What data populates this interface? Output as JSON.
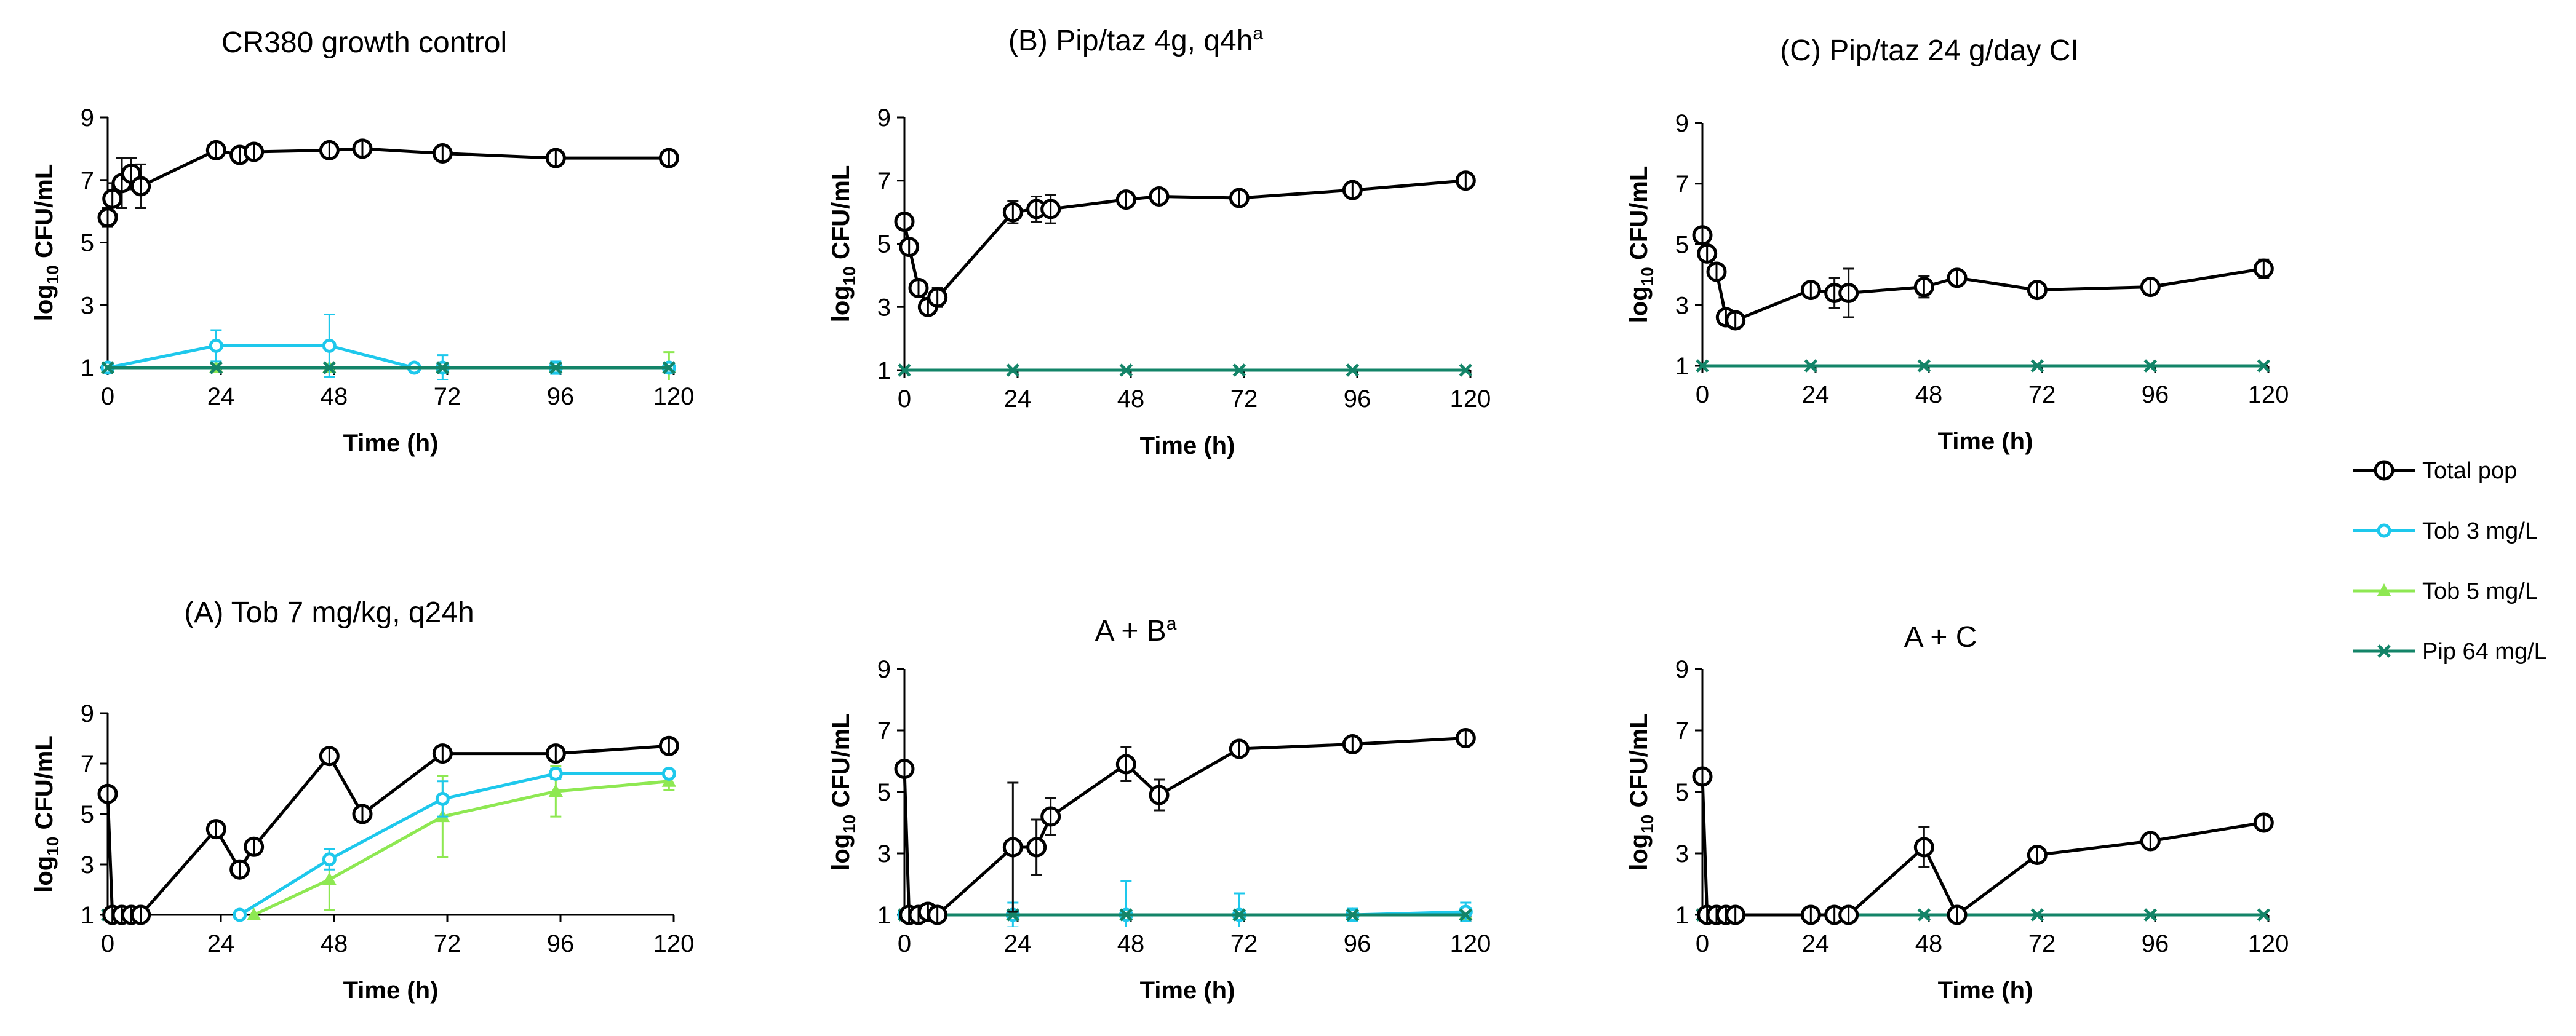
{
  "colors": {
    "total": "#000000",
    "tob3": "#1ec8ec",
    "tob5": "#8ee852",
    "pip64": "#138468",
    "errbar": "#111111"
  },
  "legend": {
    "items": [
      {
        "label": "Total pop",
        "color": "#000000",
        "marker": "circle"
      },
      {
        "label": "Tob 3 mg/L",
        "color": "#1ec8ec",
        "marker": "circle"
      },
      {
        "label": "Tob 5 mg/L",
        "color": "#8ee852",
        "marker": "triangle"
      },
      {
        "label": "Pip 64 mg/L",
        "color": "#138468",
        "marker": "x"
      }
    ]
  },
  "chart_data": [
    {
      "type": "line",
      "title": "CR380 growth control",
      "title_sup": "",
      "xlabel": "Time (h)",
      "ylabel": "log10 CFU/mL",
      "xticks": [
        "0",
        "24",
        "48",
        "72",
        "96",
        "120"
      ],
      "yticks": [
        "1",
        "3",
        "5",
        "7",
        "9"
      ],
      "xlim": [
        0,
        120
      ],
      "ylim": [
        1,
        9
      ],
      "series": [
        {
          "name": "Total pop",
          "x": [
            0,
            1,
            3,
            5,
            7,
            23,
            28,
            31,
            47,
            54,
            71,
            95,
            119
          ],
          "y": [
            5.8,
            6.4,
            6.9,
            7.2,
            6.8,
            7.95,
            7.8,
            7.9,
            7.95,
            8.0,
            7.85,
            7.7,
            7.7
          ],
          "err": [
            0.3,
            0.5,
            0.8,
            0.5,
            0.7,
            0.1,
            0.1,
            0.1,
            0.1,
            0.1,
            0.1,
            0.1,
            0.1
          ]
        },
        {
          "name": "Tob 3 mg/L",
          "x": [
            0,
            23,
            47,
            65,
            71,
            95,
            119
          ],
          "y": [
            1.0,
            1.7,
            1.7,
            1.0,
            1.0,
            1.0,
            1.0
          ],
          "err": [
            0,
            0.5,
            1.0,
            0,
            0.4,
            0.2,
            0
          ]
        },
        {
          "name": "Tob 5 mg/L",
          "x": [
            0,
            23,
            47,
            71,
            95,
            119
          ],
          "y": [
            1.0,
            1.0,
            1.0,
            1.0,
            1.0,
            1.0
          ],
          "err": [
            0,
            0,
            0,
            0,
            0,
            0.5
          ]
        },
        {
          "name": "Pip 64 mg/L",
          "x": [
            0,
            23,
            47,
            71,
            95,
            119
          ],
          "y": [
            1.0,
            1.0,
            1.0,
            1.0,
            1.0,
            1.0
          ],
          "err": [
            0,
            0,
            0,
            0,
            0,
            0
          ]
        }
      ]
    },
    {
      "type": "line",
      "title": "(B) Pip/taz 4g, q4h",
      "title_sup": "a",
      "xlabel": "Time (h)",
      "ylabel": "log10 CFU/mL",
      "xticks": [
        "0",
        "24",
        "48",
        "72",
        "96",
        "120"
      ],
      "yticks": [
        "1",
        "3",
        "5",
        "7",
        "9"
      ],
      "xlim": [
        0,
        120
      ],
      "ylim": [
        1,
        9
      ],
      "series": [
        {
          "name": "Total pop",
          "x": [
            0,
            1,
            3,
            5,
            7,
            23,
            28,
            31,
            47,
            54,
            71,
            95,
            119
          ],
          "y": [
            5.7,
            4.9,
            3.6,
            3.0,
            3.3,
            6.0,
            6.1,
            6.1,
            6.4,
            6.5,
            6.45,
            6.7,
            7.0
          ],
          "err": [
            0.2,
            0.2,
            0.2,
            0.2,
            0.3,
            0.35,
            0.4,
            0.45,
            0.15,
            0.1,
            0.1,
            0.1,
            0.1
          ]
        },
        {
          "name": "Pip 64 mg/L",
          "x": [
            0,
            23,
            47,
            71,
            95,
            119
          ],
          "y": [
            1.0,
            1.0,
            1.0,
            1.0,
            1.0,
            1.0
          ],
          "err": [
            0,
            0,
            0,
            0,
            0,
            0
          ]
        }
      ]
    },
    {
      "type": "line",
      "title": "(C) Pip/taz 24 g/day CI",
      "title_sup": "",
      "xlabel": "Time (h)",
      "ylabel": "log10 CFU/mL",
      "xticks": [
        "0",
        "24",
        "48",
        "72",
        "96",
        "120"
      ],
      "yticks": [
        "1",
        "3",
        "5",
        "7",
        "9"
      ],
      "xlim": [
        0,
        120
      ],
      "ylim": [
        1,
        9
      ],
      "series": [
        {
          "name": "Total pop",
          "x": [
            0,
            1,
            3,
            5,
            7,
            23,
            28,
            31,
            47,
            54,
            71,
            95,
            119
          ],
          "y": [
            5.3,
            4.7,
            4.1,
            2.6,
            2.5,
            3.5,
            3.4,
            3.4,
            3.6,
            3.9,
            3.5,
            3.6,
            4.2
          ],
          "err": [
            0.2,
            0.2,
            0.2,
            0.2,
            0.2,
            0.25,
            0.5,
            0.8,
            0.35,
            0.2,
            0.1,
            0.15,
            0.3
          ]
        },
        {
          "name": "Pip 64 mg/L",
          "x": [
            0,
            23,
            47,
            71,
            95,
            119
          ],
          "y": [
            1.0,
            1.0,
            1.0,
            1.0,
            1.0,
            1.0
          ],
          "err": [
            0,
            0,
            0,
            0,
            0,
            0
          ]
        }
      ]
    },
    {
      "type": "line",
      "title": "(A) Tob 7 mg/kg, q24h",
      "title_sup": "",
      "xlabel": "Time (h)",
      "ylabel": "log10 CFU/mL",
      "xticks": [
        "0",
        "24",
        "48",
        "72",
        "96",
        "120"
      ],
      "yticks": [
        "1",
        "3",
        "5",
        "7",
        "9"
      ],
      "xlim": [
        0,
        120
      ],
      "ylim": [
        1,
        9
      ],
      "series": [
        {
          "name": "Total pop",
          "x": [
            0,
            1,
            3,
            5,
            7,
            23,
            28,
            31,
            47,
            54,
            71,
            95,
            119
          ],
          "y": [
            5.8,
            1.0,
            1.0,
            1.0,
            1.0,
            4.4,
            2.8,
            3.7,
            7.3,
            5.0,
            7.4,
            7.4,
            7.7
          ],
          "err": [
            0.2,
            0,
            0,
            0,
            0,
            0.2,
            0.3,
            0.3,
            0.15,
            0.2,
            0.1,
            0.1,
            0.15
          ]
        },
        {
          "name": "Tob 3 mg/L",
          "x": [
            28,
            47,
            71,
            95,
            119
          ],
          "y": [
            1.0,
            3.2,
            5.6,
            6.6,
            6.6
          ],
          "err": [
            0,
            0.4,
            0.7,
            0.2,
            0.1
          ]
        },
        {
          "name": "Tob 5 mg/L",
          "x": [
            31,
            47,
            71,
            95,
            119
          ],
          "y": [
            1.0,
            2.4,
            4.9,
            5.9,
            6.3
          ],
          "err": [
            0,
            1.2,
            1.6,
            1.0,
            0.35
          ]
        },
        {
          "name": "Pip 64 mg/L",
          "x": [
            0,
            1,
            3,
            5,
            7
          ],
          "y": [
            1.0,
            1.0,
            1.0,
            1.0,
            1.0
          ],
          "err": [
            0,
            0,
            0,
            0,
            0
          ]
        }
      ]
    },
    {
      "type": "line",
      "title": "A + B",
      "title_sup": "a",
      "xlabel": "Time (h)",
      "ylabel": "log10 CFU/mL",
      "xticks": [
        "0",
        "24",
        "48",
        "72",
        "96",
        "120"
      ],
      "yticks": [
        "1",
        "3",
        "5",
        "7",
        "9"
      ],
      "xlim": [
        0,
        120
      ],
      "ylim": [
        1,
        9
      ],
      "series": [
        {
          "name": "Total pop",
          "x": [
            0,
            1,
            3,
            5,
            7,
            23,
            28,
            31,
            47,
            54,
            71,
            95,
            119
          ],
          "y": [
            5.75,
            1.0,
            1.0,
            1.1,
            1.0,
            3.2,
            3.2,
            4.2,
            5.9,
            4.9,
            6.4,
            6.55,
            6.75
          ],
          "err": [
            0.2,
            0,
            0,
            0.25,
            0,
            2.1,
            0.9,
            0.6,
            0.55,
            0.5,
            0.1,
            0.1,
            0.15
          ]
        },
        {
          "name": "Tob 3 mg/L",
          "x": [
            0,
            23,
            47,
            71,
            95,
            119
          ],
          "y": [
            1.0,
            1.0,
            1.0,
            1.0,
            1.0,
            1.1
          ],
          "err": [
            0,
            0.4,
            1.1,
            0.7,
            0.2,
            0.3
          ]
        },
        {
          "name": "Tob 5 mg/L",
          "x": [
            0,
            23,
            47,
            71,
            95,
            119
          ],
          "y": [
            1.0,
            1.0,
            1.0,
            1.0,
            1.0,
            1.0
          ],
          "err": [
            0,
            0,
            0,
            0,
            0,
            0
          ]
        },
        {
          "name": "Pip 64 mg/L",
          "x": [
            0,
            23,
            47,
            71,
            95,
            119
          ],
          "y": [
            1.0,
            1.0,
            1.0,
            1.0,
            1.0,
            1.0
          ],
          "err": [
            0,
            0,
            0,
            0,
            0,
            0
          ]
        }
      ]
    },
    {
      "type": "line",
      "title": "A + C",
      "title_sup": "",
      "xlabel": "Time (h)",
      "ylabel": "log10 CFU/mL",
      "xticks": [
        "0",
        "24",
        "48",
        "72",
        "96",
        "120"
      ],
      "yticks": [
        "1",
        "3",
        "5",
        "7",
        "9"
      ],
      "xlim": [
        0,
        120
      ],
      "ylim": [
        1,
        9
      ],
      "series": [
        {
          "name": "Total pop",
          "x": [
            0,
            1,
            3,
            5,
            7,
            23,
            28,
            31,
            47,
            54,
            71,
            95,
            119
          ],
          "y": [
            5.5,
            1.0,
            1.0,
            1.0,
            1.0,
            1.0,
            1.0,
            1.0,
            3.2,
            1.0,
            2.95,
            3.4,
            4.0
          ],
          "err": [
            0.2,
            0,
            0,
            0,
            0,
            0,
            0,
            0,
            0.65,
            0,
            0.1,
            0.1,
            0.15
          ]
        },
        {
          "name": "Pip 64 mg/L",
          "x": [
            0,
            23,
            47,
            71,
            95,
            119
          ],
          "y": [
            1.0,
            1.0,
            1.0,
            1.0,
            1.0,
            1.0
          ],
          "err": [
            0,
            0,
            0,
            0,
            0,
            0
          ]
        }
      ]
    }
  ]
}
